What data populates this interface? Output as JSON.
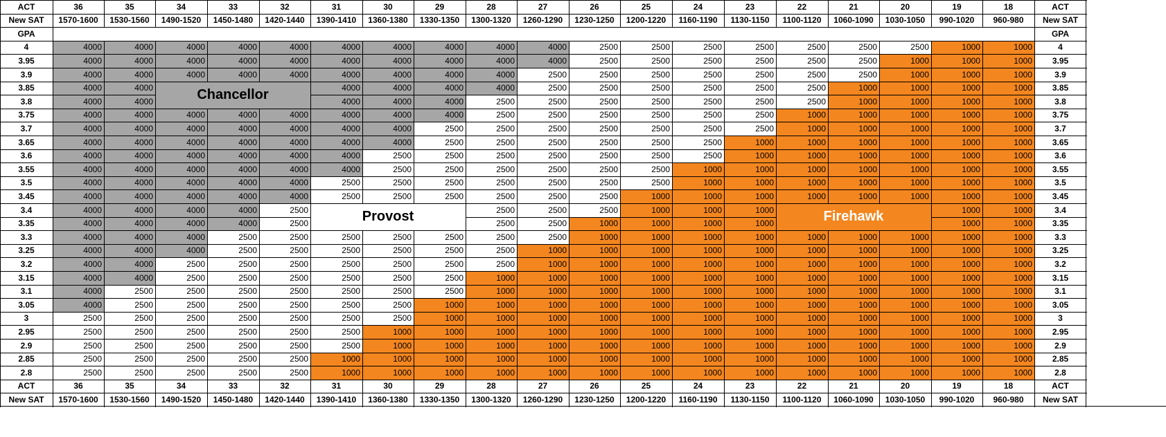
{
  "table": {
    "act_label": "ACT",
    "sat_label": "New SAT",
    "gpa_label": "GPA",
    "act_scores": [
      "36",
      "35",
      "34",
      "33",
      "32",
      "31",
      "30",
      "29",
      "28",
      "27",
      "26",
      "25",
      "24",
      "23",
      "22",
      "21",
      "20",
      "19",
      "18"
    ],
    "sat_ranges": [
      "1570-1600",
      "1530-1560",
      "1490-1520",
      "1450-1480",
      "1420-1440",
      "1390-1410",
      "1360-1380",
      "1330-1350",
      "1300-1320",
      "1260-1290",
      "1230-1250",
      "1200-1220",
      "1160-1190",
      "1130-1150",
      "1100-1120",
      "1060-1090",
      "1030-1050",
      "990-1020",
      "960-980"
    ],
    "gpas": [
      "4",
      "3.95",
      "3.9",
      "3.85",
      "3.8",
      "3.75",
      "3.7",
      "3.65",
      "3.6",
      "3.55",
      "3.5",
      "3.45",
      "3.4",
      "3.35",
      "3.3",
      "3.25",
      "3.2",
      "3.15",
      "3.1",
      "3.05",
      "3",
      "2.95",
      "2.9",
      "2.85",
      "2.8"
    ],
    "tier_rows": [
      "CCCCCCCCCCPPPPPPPFF",
      "CCCCCCCCCCPPPPPPFFF",
      "CCCCCCCCCPPPPPPPFFF",
      "CCCCCCCCCPPPPPPFFFF",
      "CCCCCCCCPPPPPPPFFFF",
      "CCCCCCCCPPPPPPFFFFF",
      "CCCCCCCPPPPPPPFFFFF",
      "CCCCCCCPPPPPPFFFFFF",
      "CCCCCCPPPPPPPFFFFFF",
      "CCCCCCPPPPPPFFFFFFF",
      "CCCCCPPPPPPPFFFFFFF",
      "CCCCCPPPPPPFFFFFFFF",
      "CCCCPPPPPPPFFFFFFFF",
      "CCCCPPPPPPFFFFFFFFF",
      "CCCPPPPPPPFFFFFFFFF",
      "CCCPPPPPPFFFFFFFFFF",
      "CCPPPPPPPFFFFFFFFFF",
      "CCPPPPPPFFFFFFFFFFF",
      "CPPPPPPPFFFFFFFFFFF",
      "CPPPPPPFFFFFFFFFFFF",
      "PPPPPPPFFFFFFFFFFFF",
      "PPPPPPFFFFFFFFFFFFF",
      "PPPPPPFFFFFFFFFFFFF",
      "PPPPPFFFFFFFFFFFFFF",
      "PPPPPFFFFFFFFFFFFFF"
    ],
    "tier_values": {
      "C": "4000",
      "P": "2500",
      "F": "1000"
    },
    "tier_colors": {
      "C": "#a6a6a6",
      "P": "#ffffff",
      "F": "#f4861f"
    }
  },
  "labels": {
    "chancellor": "Chancellor",
    "provost": "Provost",
    "firehawk": "Firehawk"
  }
}
